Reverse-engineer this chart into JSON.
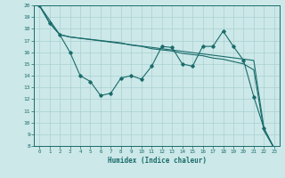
{
  "xlabel": "Humidex (Indice chaleur)",
  "xlim": [
    -0.5,
    23.5
  ],
  "ylim": [
    8,
    20
  ],
  "xticks": [
    0,
    1,
    2,
    3,
    4,
    5,
    6,
    7,
    8,
    9,
    10,
    11,
    12,
    13,
    14,
    15,
    16,
    17,
    18,
    19,
    20,
    21,
    22,
    23
  ],
  "yticks": [
    8,
    9,
    10,
    11,
    12,
    13,
    14,
    15,
    16,
    17,
    18,
    19,
    20
  ],
  "bg_color": "#cce8e8",
  "grid_color": "#aad0d0",
  "line_color": "#1a6b6b",
  "line1_x": [
    0,
    1,
    2,
    3,
    4,
    5,
    6,
    7,
    8,
    9,
    10,
    11,
    12,
    13,
    14,
    15,
    16,
    17,
    18,
    19,
    20,
    21,
    22,
    23
  ],
  "line1_y": [
    20,
    18.5,
    17.5,
    16.0,
    14.0,
    13.5,
    12.3,
    12.5,
    13.8,
    14.0,
    13.7,
    14.8,
    16.5,
    16.4,
    15.0,
    14.8,
    16.5,
    16.5,
    17.8,
    16.5,
    15.3,
    12.2,
    9.5,
    7.8
  ],
  "line2_x": [
    0,
    2,
    3,
    21,
    22,
    23
  ],
  "line2_y": [
    20,
    17.5,
    17.3,
    15.3,
    9.5,
    7.8
  ],
  "line3_x": [
    0,
    1,
    2,
    3,
    4,
    5,
    6,
    7,
    8,
    9,
    10,
    11,
    12,
    13,
    14,
    15,
    16,
    17,
    18,
    19,
    20,
    21,
    22,
    23
  ],
  "line3_y": [
    20,
    18.5,
    17.5,
    17.3,
    17.2,
    17.1,
    17.0,
    16.9,
    16.8,
    16.6,
    16.5,
    16.3,
    16.2,
    16.1,
    15.9,
    15.8,
    15.7,
    15.5,
    15.4,
    15.2,
    15.0,
    14.5,
    9.3,
    7.8
  ]
}
